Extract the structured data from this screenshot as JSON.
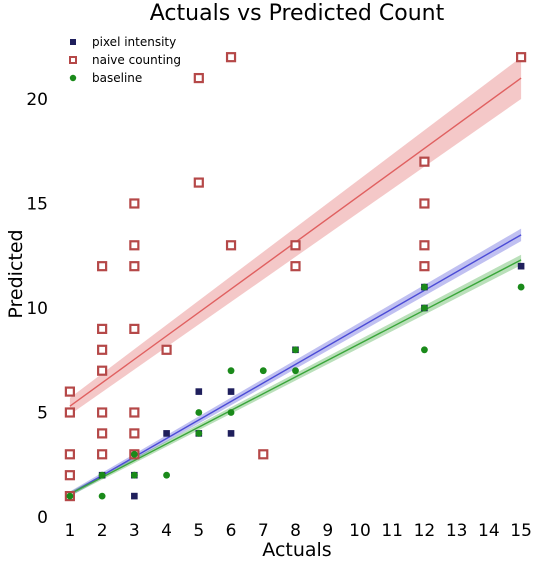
{
  "chart_data": {
    "type": "scatter",
    "title": "Actuals vs Predicted Count",
    "xlabel": "Actuals",
    "ylabel": "Predicted",
    "xlim": [
      0.6,
      15.4
    ],
    "ylim": [
      0,
      23.3
    ],
    "xticks": [
      1,
      2,
      3,
      4,
      5,
      6,
      7,
      8,
      9,
      10,
      11,
      12,
      13,
      14,
      15
    ],
    "yticks": [
      0,
      5,
      10,
      15,
      20
    ],
    "grid": false,
    "legend_position": "top-left",
    "series": [
      {
        "name": "pixel intensity",
        "marker": "filled-square",
        "color": "#1f1f5c",
        "points": [
          [
            1,
            1
          ],
          [
            1,
            2
          ],
          [
            1,
            3
          ],
          [
            2,
            2
          ],
          [
            2,
            3
          ],
          [
            3,
            1
          ],
          [
            3,
            2
          ],
          [
            3,
            3
          ],
          [
            3,
            5
          ],
          [
            4,
            4
          ],
          [
            5,
            6
          ],
          [
            5,
            4
          ],
          [
            6,
            6
          ],
          [
            6,
            4
          ],
          [
            8,
            8
          ],
          [
            12,
            13
          ],
          [
            12,
            11
          ],
          [
            12,
            10
          ],
          [
            15,
            12
          ]
        ],
        "fit": {
          "start": [
            1,
            1.1
          ],
          "end": [
            15,
            13.5
          ],
          "band": 0.3,
          "color": "#4b4bd6"
        }
      },
      {
        "name": "naive counting",
        "marker": "hollow-square",
        "color": "#b54848",
        "points": [
          [
            1,
            1
          ],
          [
            1,
            2
          ],
          [
            1,
            3
          ],
          [
            1,
            5
          ],
          [
            1,
            6
          ],
          [
            2,
            3
          ],
          [
            2,
            4
          ],
          [
            2,
            5
          ],
          [
            2,
            7
          ],
          [
            2,
            8
          ],
          [
            2,
            9
          ],
          [
            2,
            12
          ],
          [
            3,
            3
          ],
          [
            3,
            4
          ],
          [
            3,
            5
          ],
          [
            3,
            9
          ],
          [
            3,
            12
          ],
          [
            3,
            13
          ],
          [
            3,
            15
          ],
          [
            4,
            8
          ],
          [
            5,
            16
          ],
          [
            5,
            21
          ],
          [
            6,
            13
          ],
          [
            6,
            22
          ],
          [
            7,
            3
          ],
          [
            8,
            12
          ],
          [
            8,
            13
          ],
          [
            12,
            12
          ],
          [
            12,
            13
          ],
          [
            12,
            15
          ],
          [
            12,
            17
          ],
          [
            15,
            22
          ]
        ],
        "fit": {
          "start": [
            1,
            5.3
          ],
          "end": [
            15,
            21
          ],
          "band": 1.0,
          "color": "#e06060"
        }
      },
      {
        "name": "baseline",
        "marker": "circle",
        "color": "#1a8a1a",
        "points": [
          [
            1,
            1
          ],
          [
            2,
            1
          ],
          [
            2,
            2
          ],
          [
            3,
            2
          ],
          [
            3,
            3
          ],
          [
            4,
            2
          ],
          [
            5,
            5
          ],
          [
            5,
            4
          ],
          [
            6,
            7
          ],
          [
            6,
            5
          ],
          [
            7,
            7
          ],
          [
            8,
            8
          ],
          [
            8,
            7
          ],
          [
            12,
            10
          ],
          [
            12,
            8
          ],
          [
            12,
            11
          ],
          [
            15,
            11
          ]
        ],
        "fit": {
          "start": [
            1,
            1.1
          ],
          "end": [
            15,
            12.3
          ],
          "band": 0.25,
          "color": "#3aa63a"
        }
      }
    ]
  }
}
